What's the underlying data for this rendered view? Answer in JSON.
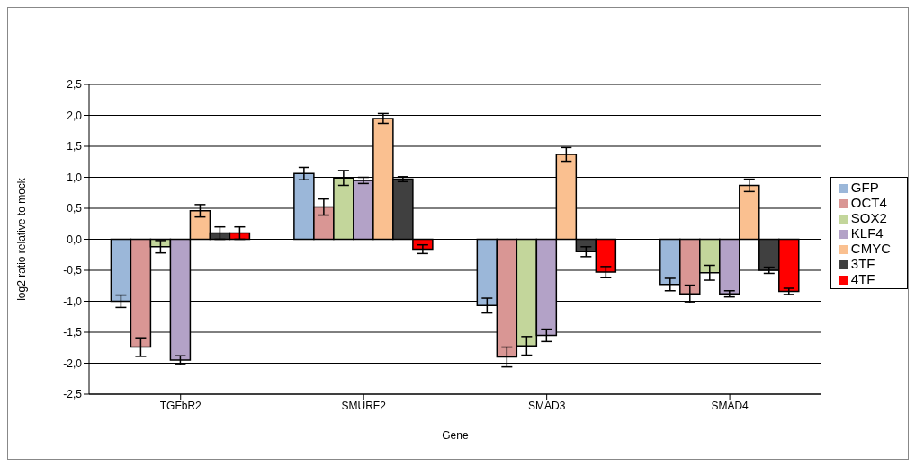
{
  "chart_data": {
    "type": "bar",
    "xlabel": "Gene",
    "ylabel": "log2 ratio relative to mock",
    "categories": [
      "TGFbR2",
      "SMURF2",
      "SMAD3",
      "SMAD4"
    ],
    "series": [
      {
        "name": "GFP",
        "color": "#9bb7d9",
        "values": [
          -1.0,
          1.06,
          -1.07,
          -0.73
        ],
        "errors": [
          0.1,
          0.1,
          0.12,
          0.1
        ]
      },
      {
        "name": "OCT4",
        "color": "#d99694",
        "values": [
          -1.74,
          0.52,
          -1.9,
          -0.88
        ],
        "errors": [
          0.15,
          0.13,
          0.16,
          0.14
        ]
      },
      {
        "name": "SOX2",
        "color": "#c3d69b",
        "values": [
          -0.12,
          0.99,
          -1.72,
          -0.54
        ],
        "errors": [
          0.1,
          0.12,
          0.15,
          0.12
        ]
      },
      {
        "name": "KLF4",
        "color": "#b3a2c7",
        "values": [
          -1.95,
          0.95,
          -1.55,
          -0.88
        ],
        "errors": [
          0.07,
          0.05,
          0.1,
          0.05
        ]
      },
      {
        "name": "CMYC",
        "color": "#fac090",
        "values": [
          0.46,
          1.95,
          1.37,
          0.87
        ],
        "errors": [
          0.1,
          0.08,
          0.11,
          0.1
        ]
      },
      {
        "name": "3TF",
        "color": "#404040",
        "values": [
          0.1,
          0.97,
          -0.2,
          -0.5
        ],
        "errors": [
          0.1,
          0.04,
          0.08,
          0.05
        ]
      },
      {
        "name": "4TF",
        "color": "#ff0000",
        "values": [
          0.1,
          -0.16,
          -0.53,
          -0.84
        ],
        "errors": [
          0.1,
          0.07,
          0.09,
          0.05
        ]
      }
    ],
    "ylim": [
      -2.5,
      2.5
    ],
    "yticks": [
      {
        "value": -2.5,
        "label": "-2,5"
      },
      {
        "value": -2.0,
        "label": "-2,0"
      },
      {
        "value": -1.5,
        "label": "-1,5"
      },
      {
        "value": -1.0,
        "label": "-1,0"
      },
      {
        "value": -0.5,
        "label": "-0,5"
      },
      {
        "value": 0,
        "label": "0,0"
      },
      {
        "value": 0.5,
        "label": "0,5"
      },
      {
        "value": 1.0,
        "label": "1,0"
      },
      {
        "value": 1.5,
        "label": "1,5"
      },
      {
        "value": 2.0,
        "label": "2,0"
      },
      {
        "value": 2.5,
        "label": "2,5"
      }
    ],
    "grid": "y",
    "legend": "right"
  }
}
